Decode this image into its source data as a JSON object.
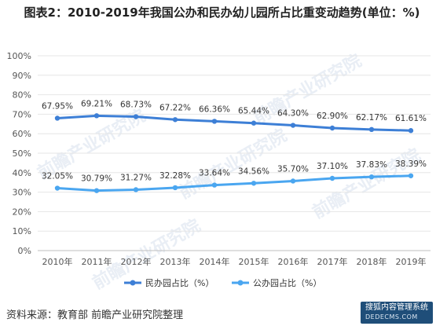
{
  "title": "图表2：2010-2019年我国公办和民办幼儿园所占比重变动趋势(单位：%)",
  "source": "资料来源：教育部 前瞻产业研究院整理",
  "watermark": {
    "text": "前瞻产业研究院",
    "badge_main": "搜狐内容管理系统",
    "badge_sub": "DEDECMS.COM"
  },
  "chart_data": {
    "type": "line",
    "categories": [
      "2010年",
      "2011年",
      "2012年",
      "2013年",
      "2014年",
      "2015年",
      "2016年",
      "2017年",
      "2018年",
      "2019年"
    ],
    "ylim": [
      0,
      100
    ],
    "yticks": [
      "0%",
      "10%",
      "20%",
      "30%",
      "40%",
      "50%",
      "60%",
      "70%",
      "80%",
      "90%",
      "100%"
    ],
    "ytick_values": [
      0,
      10,
      20,
      30,
      40,
      50,
      60,
      70,
      80,
      90,
      100
    ],
    "grid": true,
    "legend_position": "bottom",
    "series": [
      {
        "name": "民办园占比（%）",
        "values": [
          67.95,
          69.21,
          68.73,
          67.22,
          66.36,
          65.44,
          64.3,
          62.9,
          62.17,
          61.61
        ],
        "labels": [
          "67.95%",
          "69.21%",
          "68.73%",
          "67.22%",
          "66.36%",
          "65.44%",
          "64.30%",
          "62.90%",
          "62.17%",
          "61.61%"
        ],
        "color": "#3d7fd6"
      },
      {
        "name": "公办园占比（%）",
        "values": [
          32.05,
          30.79,
          31.27,
          32.28,
          33.64,
          34.56,
          35.7,
          37.1,
          37.83,
          38.39
        ],
        "labels": [
          "32.05%",
          "30.79%",
          "31.27%",
          "32.28%",
          "33.64%",
          "34.56%",
          "35.70%",
          "37.10%",
          "37.83%",
          "38.39%"
        ],
        "color": "#4aa6f0"
      }
    ]
  }
}
